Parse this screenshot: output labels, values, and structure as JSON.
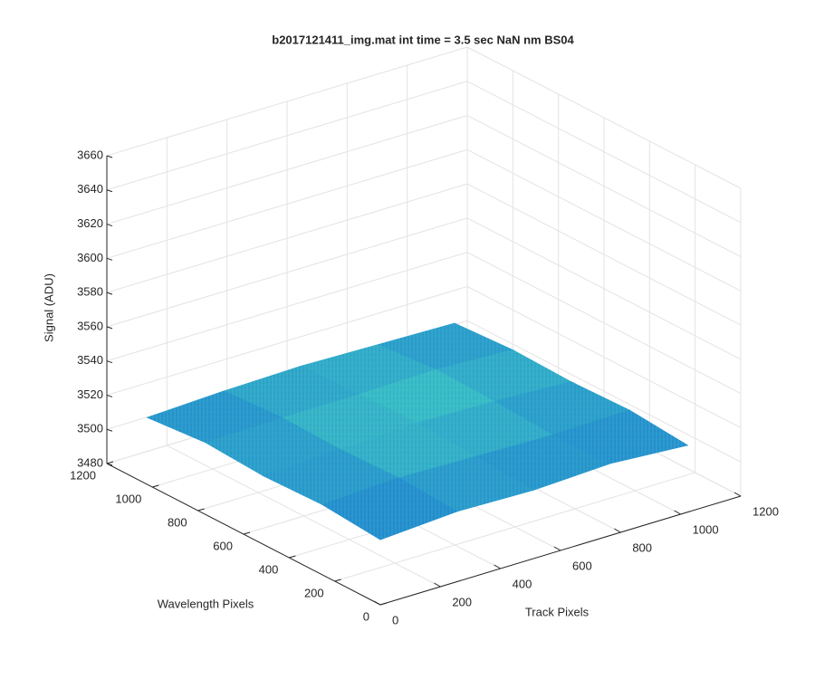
{
  "chart_data": {
    "type": "surface",
    "title": "b2017121411_img.mat int time = 3.5 sec  NaN nm BS04",
    "xlabel": "Track Pixels",
    "ylabel": "Wavelength Pixels",
    "zlabel": "Signal (ADU)",
    "x": [
      0,
      256,
      512,
      768,
      1024
    ],
    "y": [
      0,
      256,
      512,
      768,
      1024
    ],
    "z": [
      [
        3518,
        3521,
        3520,
        3522,
        3519
      ],
      [
        3521,
        3523,
        3522,
        3521,
        3522
      ],
      [
        3520,
        3522,
        3524,
        3523,
        3521
      ],
      [
        3522,
        3523,
        3523,
        3524,
        3522
      ],
      [
        3519,
        3521,
        3522,
        3521,
        3520
      ]
    ],
    "xlim": [
      0,
      1200
    ],
    "ylim": [
      0,
      1200
    ],
    "zlim": [
      3480,
      3660
    ],
    "xticks": [
      0,
      200,
      400,
      600,
      800,
      1000,
      1200
    ],
    "yticks": [
      0,
      200,
      400,
      600,
      800,
      1000,
      1200
    ],
    "zticks": [
      3480,
      3500,
      3520,
      3540,
      3560,
      3580,
      3600,
      3620,
      3640,
      3660
    ],
    "grid": true,
    "colormap": [
      "#0f62d6",
      "#3cc4c4"
    ]
  }
}
